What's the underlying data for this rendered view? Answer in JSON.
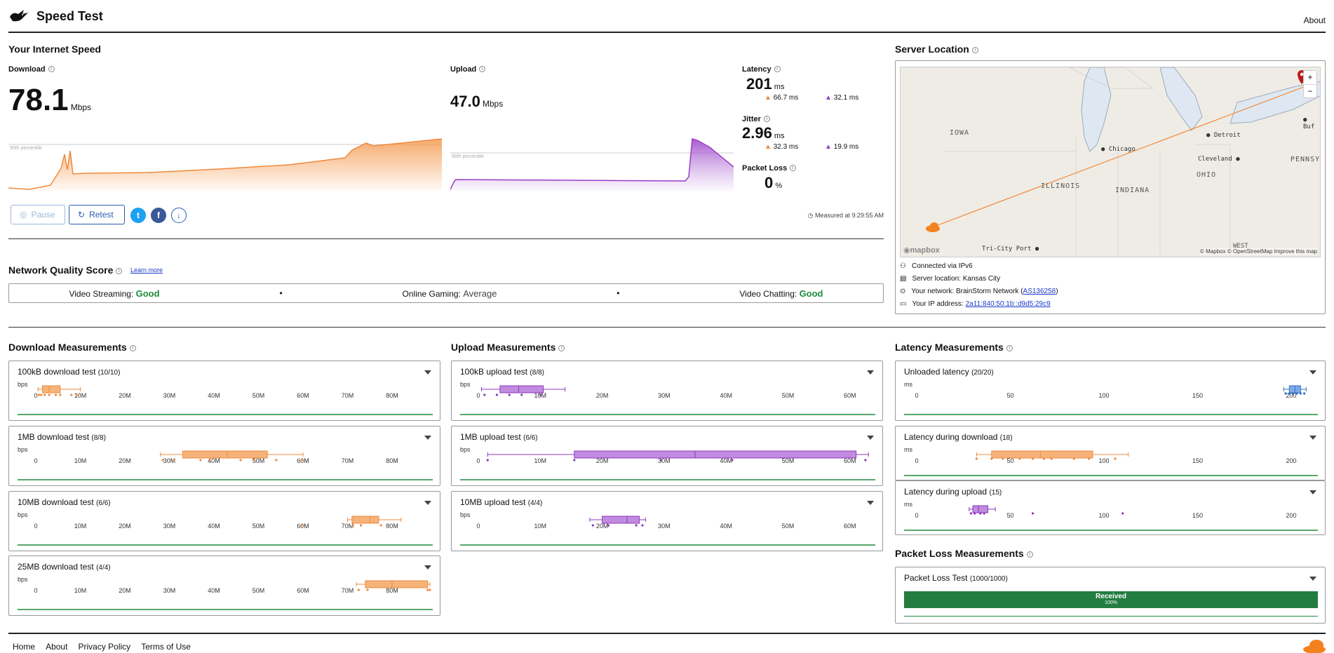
{
  "header": {
    "title": "Speed Test",
    "about": "About"
  },
  "speed": {
    "section_title": "Your Internet Speed",
    "download": {
      "label": "Download",
      "value": "78.1",
      "unit": "Mbps",
      "percentile_label": "90th percentile"
    },
    "upload": {
      "label": "Upload",
      "value": "47.0",
      "unit": "Mbps",
      "percentile_label": "90th percentile"
    },
    "latency": {
      "label": "Latency",
      "value": "201",
      "unit": "ms",
      "down": "66.7 ms",
      "up": "32.1 ms"
    },
    "jitter": {
      "label": "Jitter",
      "value": "2.96",
      "unit": "ms",
      "down": "32.3 ms",
      "up": "19.9 ms"
    },
    "packet_loss": {
      "label": "Packet Loss",
      "value": "0",
      "unit": "%"
    },
    "buttons": {
      "pause": "Pause",
      "retest": "Retest"
    },
    "measured_at": "Measured at 9:29:55 AM"
  },
  "network_quality": {
    "title": "Network Quality Score",
    "learn_more": "Learn more",
    "video_streaming": {
      "label": "Video Streaming:",
      "value": "Good"
    },
    "online_gaming": {
      "label": "Online Gaming:",
      "value": "Average"
    },
    "video_chatting": {
      "label": "Video Chatting:",
      "value": "Good"
    },
    "separator": "•"
  },
  "server": {
    "title": "Server Location",
    "map_labels": [
      "IOWA",
      "ILLINOIS",
      "INDIANA",
      "OHIO",
      "PENNSYI",
      "WEST",
      "Chicago",
      "Detroit",
      "Cleveland",
      "Tri-City Port",
      "Buf"
    ],
    "attribution": "© Mapbox © OpenStreetMap  Improve this map",
    "mapbox_logo": "mapbox",
    "zoom_in": "+",
    "zoom_out": "−",
    "connected": "Connected via IPv6",
    "location": "Server location: Kansas City",
    "network_prefix": "Your network: BrainStorm Network (",
    "network_as": "AS136258",
    "network_suffix": ")",
    "ip_prefix": "Your IP address: ",
    "ip": "2a11:840:50:1b::d9d5:29c9"
  },
  "download_measurements": {
    "title": "Download Measurements",
    "axis_unit": "bps",
    "ticks": [
      "0",
      "10M",
      "20M",
      "30M",
      "40M",
      "50M",
      "60M",
      "70M",
      "80M"
    ],
    "tests": [
      {
        "name": "100kB download test",
        "count": "(10/10)"
      },
      {
        "name": "1MB download test",
        "count": "(8/8)"
      },
      {
        "name": "10MB download test",
        "count": "(6/6)"
      },
      {
        "name": "25MB download test",
        "count": "(4/4)"
      }
    ]
  },
  "upload_measurements": {
    "title": "Upload Measurements",
    "axis_unit": "bps",
    "ticks": [
      "0",
      "10M",
      "20M",
      "30M",
      "40M",
      "50M",
      "60M"
    ],
    "tests": [
      {
        "name": "100kB upload test",
        "count": "(8/8)"
      },
      {
        "name": "1MB upload test",
        "count": "(6/6)"
      },
      {
        "name": "10MB upload test",
        "count": "(4/4)"
      }
    ]
  },
  "latency_measurements": {
    "title": "Latency Measurements",
    "axis_unit": "ms",
    "ticks": [
      "0",
      "50",
      "100",
      "150",
      "200"
    ],
    "tests": [
      {
        "name": "Unloaded latency",
        "count": "(20/20)"
      },
      {
        "name": "Latency during download",
        "count": "(18)"
      },
      {
        "name": "Latency during upload",
        "count": "(15)"
      }
    ]
  },
  "packet_loss_measurements": {
    "title": "Packet Loss Measurements",
    "test": {
      "name": "Packet Loss Test",
      "count": "(1000/1000)"
    },
    "bar_label": "Received",
    "bar_value": "100%",
    "received_fraction": 1.0
  },
  "footer": {
    "links": [
      "Home",
      "About",
      "Privacy Policy",
      "Terms of Use"
    ]
  },
  "colors": {
    "download": "#f5a05a",
    "upload": "#b77ad8",
    "latency_unloaded": "#4a86d6",
    "good": "#1e8a3c",
    "link": "#1a3cc8",
    "packet_bar": "#237d41"
  }
}
